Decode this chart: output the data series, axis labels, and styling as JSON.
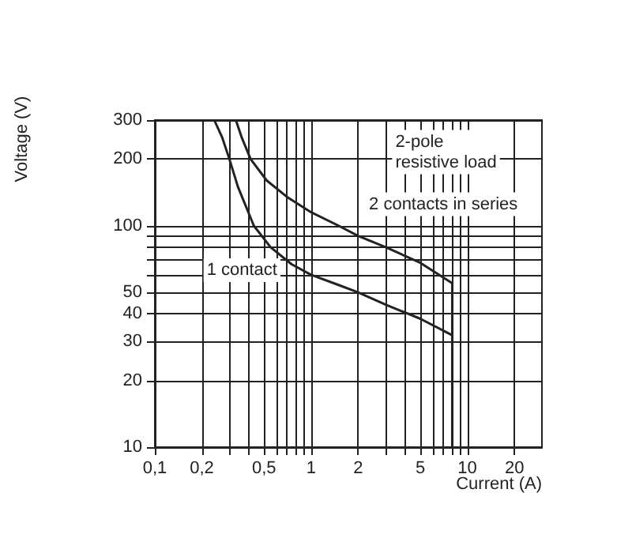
{
  "chart_data": {
    "type": "line",
    "xlabel": "Current (A)",
    "ylabel": "Voltage (V)",
    "log": "xy",
    "grid": true,
    "legend": false,
    "marker": "none",
    "line_style": "solid",
    "xlim": [
      0.1,
      30
    ],
    "ylim": [
      10,
      300
    ],
    "xticks": [
      {
        "value": 0.1,
        "label": "0,1"
      },
      {
        "value": 0.2,
        "label": "0,2"
      },
      {
        "value": 0.3,
        "label": null
      },
      {
        "value": 0.4,
        "label": null
      },
      {
        "value": 0.5,
        "label": "0,5"
      },
      {
        "value": 0.6,
        "label": null
      },
      {
        "value": 0.7,
        "label": null
      },
      {
        "value": 0.8,
        "label": null
      },
      {
        "value": 0.9,
        "label": null
      },
      1,
      2,
      {
        "value": 3,
        "label": null
      },
      {
        "value": 4,
        "label": null
      },
      5,
      {
        "value": 6,
        "label": null
      },
      {
        "value": 7,
        "label": null
      },
      {
        "value": 8,
        "label": null
      },
      {
        "value": 9,
        "label": null
      },
      10,
      20
    ],
    "yticks": [
      10,
      20,
      30,
      40,
      50,
      {
        "value": 60,
        "label": null
      },
      {
        "value": 70,
        "label": null
      },
      {
        "value": 80,
        "label": null
      },
      {
        "value": 90,
        "label": null
      },
      100,
      200,
      300
    ],
    "series": [
      {
        "name": "1 contact",
        "color": "#222222",
        "x": [
          0.24,
          0.27,
          0.3,
          0.34,
          0.43,
          0.55,
          0.75,
          1,
          1.5,
          2,
          3,
          5,
          8
        ],
        "values": [
          300,
          250,
          200,
          150,
          100,
          80,
          67,
          60,
          54,
          50,
          44,
          38,
          32
        ]
      },
      {
        "name": "2 contacts in series",
        "color": "#222222",
        "x": [
          0.33,
          0.36,
          0.41,
          0.52,
          0.7,
          1,
          1.5,
          2,
          3,
          5,
          8,
          8
        ],
        "values": [
          300,
          250,
          200,
          160,
          135,
          115,
          100,
          90,
          80,
          68,
          55,
          10
        ]
      }
    ],
    "annotations": [
      "2-pole\nresistive load"
    ]
  }
}
